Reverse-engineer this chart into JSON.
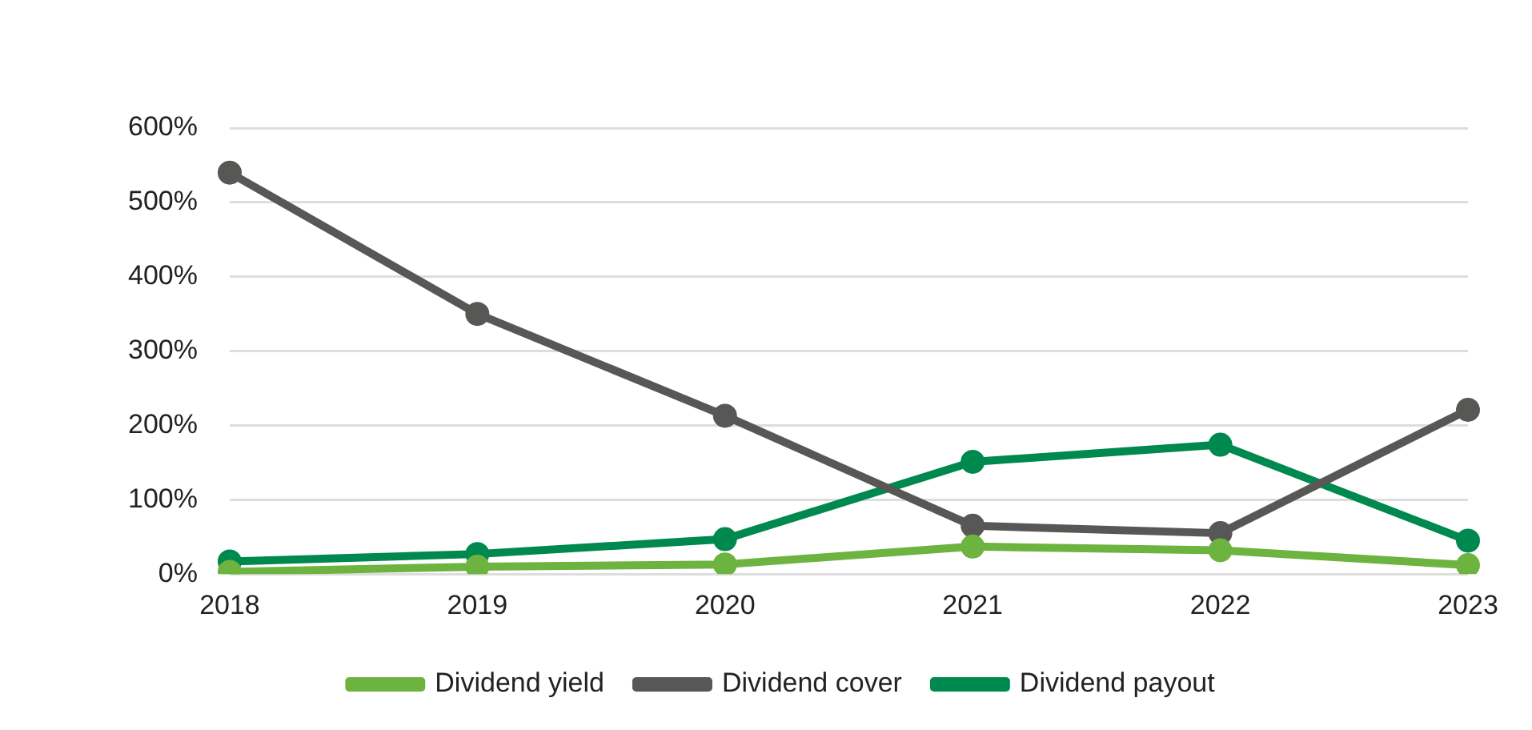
{
  "chart_data": {
    "type": "line",
    "categories": [
      "2018",
      "2019",
      "2020",
      "2021",
      "2022",
      "2023"
    ],
    "series": [
      {
        "name": "Dividend yield",
        "color": "#6db33f",
        "values": [
          3,
          10,
          13,
          37,
          32,
          12
        ]
      },
      {
        "name": "Dividend cover",
        "color": "#575756",
        "values": [
          540,
          350,
          213,
          65,
          55,
          221
        ]
      },
      {
        "name": "Dividend payout",
        "color": "#00894f",
        "values": [
          17,
          27,
          47,
          151,
          174,
          45
        ]
      }
    ],
    "ylim": [
      0,
      600
    ],
    "yticks": [
      {
        "value": 0,
        "label": "0%"
      },
      {
        "value": 100,
        "label": "100%"
      },
      {
        "value": 200,
        "label": "200%"
      },
      {
        "value": 300,
        "label": "300%"
      },
      {
        "value": 400,
        "label": "400%"
      },
      {
        "value": 500,
        "label": "500%"
      },
      {
        "value": 600,
        "label": "600%"
      }
    ],
    "grid": "y",
    "legend": "bottom",
    "marker": "circle",
    "line_style": "solid"
  }
}
